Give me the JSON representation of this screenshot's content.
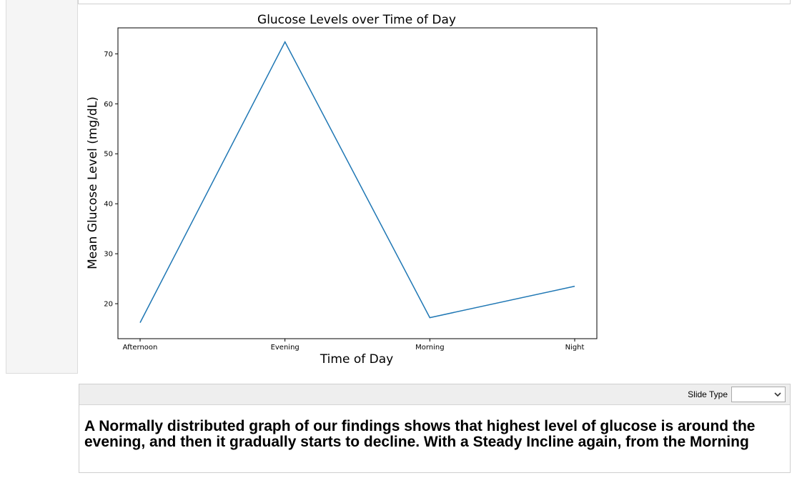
{
  "chart_data": {
    "type": "line",
    "title": "Glucose Levels over Time of Day",
    "xlabel": "Time of Day",
    "ylabel": "Mean Glucose Level (mg/dL)",
    "categories": [
      "Afternoon",
      "Evening",
      "Morning",
      "Night"
    ],
    "series": [
      {
        "values": [
          16.2,
          72.4,
          17.2,
          23.5
        ]
      }
    ],
    "ylim": [
      13.0,
      75.2
    ],
    "yticks": [
      20,
      30,
      40,
      50,
      60,
      70
    ],
    "grid": false,
    "line_color": "#1f77b4"
  },
  "cell": {
    "slide_type_label": "Slide Type",
    "slide_type_value": "",
    "markdown_text": "A Normally distributed graph of our findings shows that highest level of glucose is around the evening, and then it gradually starts to decline. With a Steady Incline again, from the Morning"
  }
}
